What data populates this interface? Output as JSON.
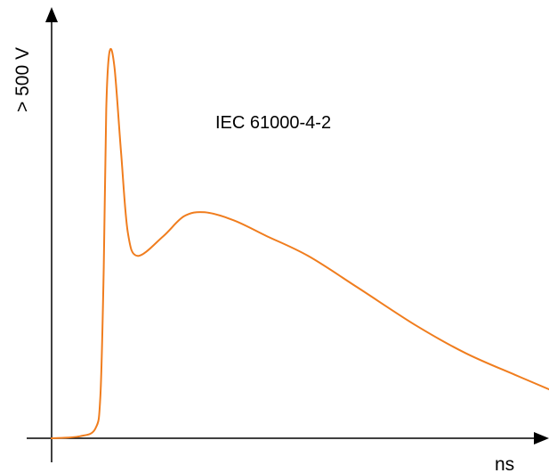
{
  "chart_data": {
    "type": "line",
    "title": "IEC 61000-4-2",
    "xlabel": "ns",
    "ylabel": "> 500 V",
    "grid": false,
    "legend": "none",
    "series": [
      {
        "color": "#f07d1e",
        "points": [
          [
            0.0,
            0.0
          ],
          [
            3.4,
            0.05
          ],
          [
            5.3,
            0.25
          ],
          [
            5.9,
            1.1
          ],
          [
            6.3,
            4.3
          ],
          [
            6.6,
            8.3
          ],
          [
            7.0,
            9.75
          ],
          [
            7.6,
            9.35
          ],
          [
            8.4,
            7.2
          ],
          [
            9.2,
            5.2
          ],
          [
            10.4,
            4.6
          ],
          [
            13.5,
            5.1
          ],
          [
            16.0,
            5.6
          ],
          [
            18.5,
            5.7
          ],
          [
            22.0,
            5.5
          ],
          [
            26.0,
            5.1
          ],
          [
            31.0,
            4.6
          ],
          [
            37.0,
            3.8
          ],
          [
            44.0,
            2.85
          ],
          [
            50.0,
            2.15
          ],
          [
            56.0,
            1.6
          ],
          [
            60.5,
            1.2
          ]
        ]
      }
    ]
  },
  "colors": {
    "curve": "#f07d1e",
    "axis": "#000000"
  }
}
